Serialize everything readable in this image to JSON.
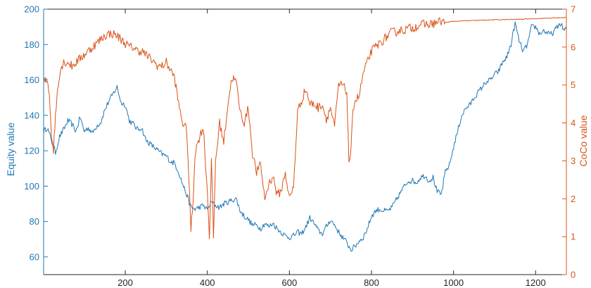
{
  "chart_data": {
    "type": "line",
    "title": "",
    "xlabel": "",
    "xlim": [
      1,
      1275
    ],
    "xticks": [
      200,
      400,
      600,
      800,
      1000,
      1200
    ],
    "grid": false,
    "legend": "none",
    "left_axis": {
      "label": "Equity value",
      "ylim": [
        50,
        200
      ],
      "ticks": [
        60,
        80,
        100,
        120,
        140,
        160,
        180,
        200
      ],
      "color": "#1f77b4"
    },
    "right_axis": {
      "label": "CoCo value",
      "ylim": [
        0,
        7
      ],
      "ticks": [
        0,
        1,
        2,
        3,
        4,
        5,
        6,
        7
      ],
      "color": "#d95319"
    },
    "series": [
      {
        "axis": "left",
        "color": "#1f77b4",
        "x": [
          1,
          10,
          20,
          30,
          40,
          50,
          60,
          70,
          80,
          90,
          100,
          110,
          120,
          130,
          140,
          150,
          160,
          170,
          180,
          190,
          200,
          210,
          220,
          230,
          240,
          250,
          260,
          270,
          280,
          290,
          300,
          310,
          320,
          330,
          340,
          350,
          360,
          370,
          380,
          390,
          400,
          410,
          420,
          430,
          440,
          450,
          460,
          470,
          480,
          490,
          500,
          510,
          520,
          530,
          540,
          550,
          560,
          570,
          580,
          590,
          600,
          610,
          620,
          630,
          640,
          650,
          660,
          670,
          680,
          690,
          700,
          710,
          720,
          730,
          740,
          750,
          760,
          770,
          780,
          790,
          800,
          810,
          820,
          830,
          840,
          850,
          860,
          870,
          880,
          890,
          900,
          910,
          920,
          930,
          940,
          950,
          960,
          970,
          980,
          990,
          1000,
          1010,
          1020,
          1030,
          1040,
          1050,
          1060,
          1070,
          1080,
          1090,
          1100,
          1110,
          1120,
          1130,
          1140,
          1150,
          1160,
          1170,
          1180,
          1190,
          1200,
          1210,
          1220,
          1230,
          1240,
          1250,
          1260,
          1270,
          1275
        ],
        "values": [
          131,
          133,
          126,
          119,
          128,
          132,
          137,
          135,
          131,
          139,
          131,
          133,
          130,
          134,
          136,
          143,
          148,
          152,
          156,
          147,
          146,
          137,
          135,
          132,
          133,
          126,
          124,
          122,
          120,
          118,
          117,
          114,
          113,
          108,
          101,
          95,
          88,
          87,
          88,
          89,
          87,
          91,
          89,
          88,
          90,
          91,
          92,
          93,
          86,
          83,
          81,
          78,
          78,
          76,
          79,
          77,
          79,
          76,
          74,
          72,
          71,
          72,
          74,
          73,
          77,
          82,
          79,
          75,
          73,
          77,
          81,
          78,
          74,
          71,
          68,
          64,
          66,
          69,
          71,
          76,
          83,
          86,
          87,
          86,
          86,
          88,
          92,
          96,
          100,
          103,
          103,
          102,
          105,
          106,
          103,
          105,
          97,
          95,
          108,
          112,
          122,
          131,
          140,
          144,
          146,
          150,
          153,
          156,
          159,
          160,
          163,
          165,
          170,
          173,
          180,
          192,
          182,
          176,
          180,
          190,
          190,
          186,
          188,
          186,
          186,
          189,
          192,
          188,
          190
        ],
        "noise": 1.6
      },
      {
        "axis": "right",
        "color": "#d95319",
        "x": [
          1,
          10,
          15,
          20,
          25,
          30,
          35,
          40,
          45,
          50,
          60,
          70,
          80,
          90,
          100,
          110,
          120,
          130,
          140,
          150,
          160,
          170,
          180,
          190,
          200,
          210,
          220,
          230,
          240,
          250,
          260,
          270,
          280,
          290,
          300,
          310,
          320,
          330,
          340,
          350,
          355,
          360,
          365,
          370,
          380,
          390,
          400,
          405,
          410,
          415,
          420,
          430,
          440,
          450,
          460,
          470,
          480,
          490,
          500,
          510,
          520,
          530,
          540,
          550,
          560,
          570,
          580,
          590,
          600,
          610,
          620,
          630,
          640,
          650,
          660,
          670,
          680,
          690,
          700,
          710,
          720,
          730,
          740,
          745,
          750,
          755,
          760,
          770,
          780,
          790,
          800,
          810,
          820,
          830,
          840,
          850,
          860,
          870,
          880,
          890,
          900,
          910,
          920,
          930,
          940,
          950,
          960,
          970,
          980,
          1000,
          1050,
          1100,
          1150,
          1200,
          1250,
          1275
        ],
        "values": [
          5.1,
          5.1,
          4.8,
          3.7,
          3.3,
          4.2,
          4.9,
          5.3,
          5.5,
          5.6,
          5.6,
          5.5,
          5.6,
          5.7,
          5.8,
          5.9,
          6.0,
          6.1,
          6.2,
          6.3,
          6.35,
          6.35,
          6.3,
          6.2,
          6.1,
          6.0,
          6.0,
          5.9,
          5.9,
          5.8,
          5.7,
          5.6,
          5.5,
          5.5,
          5.6,
          5.4,
          5.2,
          4.5,
          4.0,
          3.8,
          2.5,
          1.2,
          1.9,
          3.2,
          3.6,
          3.9,
          2.2,
          1.0,
          3.0,
          1.0,
          3.0,
          4.0,
          3.5,
          4.5,
          5.2,
          5.1,
          4.3,
          4.0,
          4.4,
          3.2,
          2.7,
          2.9,
          2.0,
          2.4,
          2.6,
          2.1,
          2.2,
          2.7,
          2.0,
          2.3,
          4.3,
          4.6,
          4.9,
          4.5,
          4.5,
          4.4,
          4.5,
          4.1,
          4.4,
          3.9,
          5.0,
          5.0,
          4.8,
          3.0,
          3.2,
          4.4,
          4.6,
          4.7,
          5.3,
          5.6,
          5.9,
          6.0,
          6.1,
          6.2,
          6.3,
          6.4,
          6.4,
          6.45,
          6.45,
          6.5,
          6.5,
          6.55,
          6.6,
          6.6,
          6.6,
          6.62,
          6.65,
          6.68,
          6.65,
          6.68,
          6.7,
          6.72,
          6.73,
          6.75,
          6.77,
          6.78
        ],
        "noise": 0.12
      }
    ]
  }
}
